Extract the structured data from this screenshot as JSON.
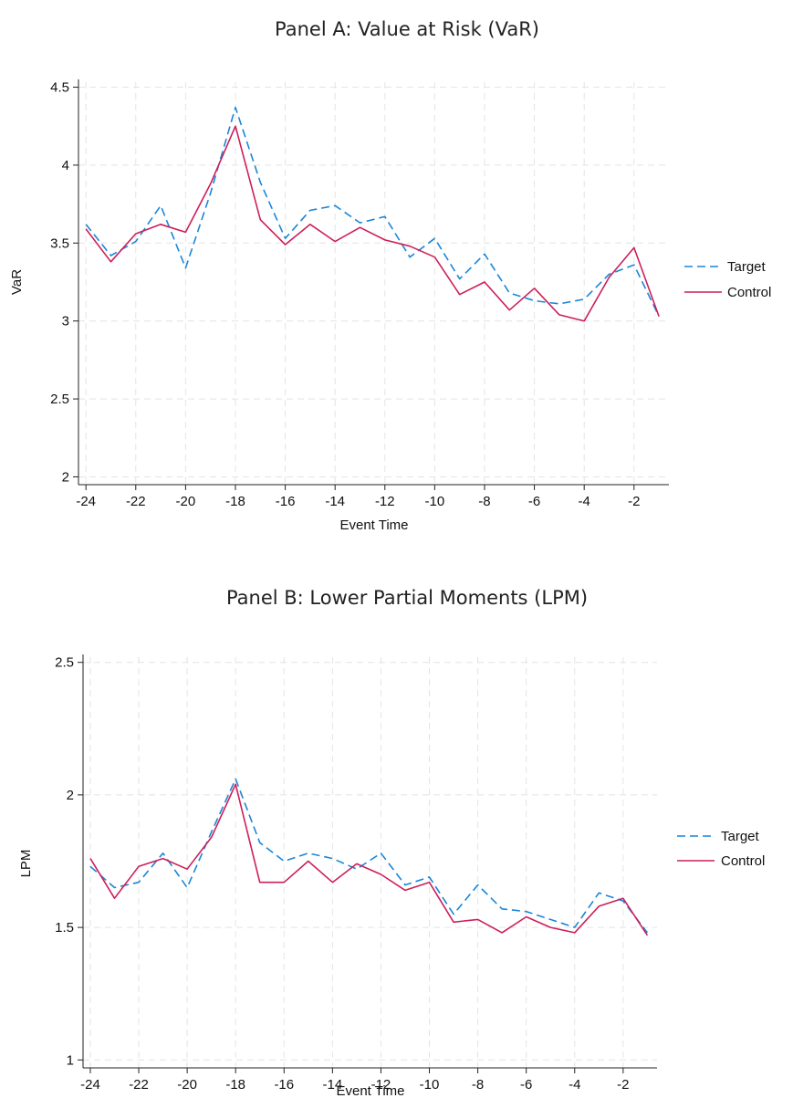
{
  "colors": {
    "target": "#1a86d9",
    "control": "#cc1f5a",
    "grid": "#e4e4e4",
    "axis": "#222222"
  },
  "chart_data": [
    {
      "type": "line",
      "title": "Panel A: Value at Risk (VaR)",
      "xlabel": "Event Time",
      "ylabel": "VaR",
      "xlim": [
        -24.3,
        -0.6
      ],
      "ylim": [
        1.95,
        4.55
      ],
      "xticks": [
        -24,
        -22,
        -20,
        -18,
        -16,
        -14,
        -12,
        -10,
        -8,
        -6,
        -4,
        -2
      ],
      "yticks": [
        2,
        2.5,
        3,
        3.5,
        4,
        4.5
      ],
      "ytick_labels": [
        "2",
        "2.5",
        "3",
        "3.5",
        "4",
        "4.5"
      ],
      "grid": true,
      "legend_position": "right",
      "x": [
        -24,
        -23,
        -22,
        -21,
        -20,
        -19,
        -18,
        -17,
        -16,
        -15,
        -14,
        -13,
        -12,
        -11,
        -10,
        -9,
        -8,
        -7,
        -6,
        -5,
        -4,
        -3,
        -2,
        -1
      ],
      "series": [
        {
          "name": "Target",
          "style": "dashed",
          "values": [
            3.62,
            3.42,
            3.51,
            3.74,
            3.34,
            3.82,
            4.37,
            3.89,
            3.53,
            3.71,
            3.74,
            3.63,
            3.67,
            3.41,
            3.53,
            3.27,
            3.43,
            3.18,
            3.13,
            3.11,
            3.14,
            3.3,
            3.36,
            3.03
          ]
        },
        {
          "name": "Control",
          "style": "solid",
          "values": [
            3.59,
            3.38,
            3.56,
            3.62,
            3.57,
            3.88,
            4.25,
            3.65,
            3.49,
            3.62,
            3.51,
            3.6,
            3.52,
            3.48,
            3.41,
            3.17,
            3.25,
            3.07,
            3.21,
            3.04,
            3.0,
            3.28,
            3.47,
            3.03
          ]
        }
      ]
    },
    {
      "type": "line",
      "title": "Panel B: Lower Partial Moments (LPM)",
      "xlabel": "Event Time",
      "ylabel": "LPM",
      "xlim": [
        -24.3,
        -0.6
      ],
      "ylim": [
        0.97,
        2.53
      ],
      "xticks": [
        -24,
        -22,
        -20,
        -18,
        -16,
        -14,
        -12,
        -10,
        -8,
        -6,
        -4,
        -2
      ],
      "yticks": [
        1,
        1.5,
        2,
        2.5
      ],
      "ytick_labels": [
        "1",
        "1.5",
        "2",
        "2.5"
      ],
      "grid": true,
      "legend_position": "right",
      "x": [
        -24,
        -23,
        -22,
        -21,
        -20,
        -19,
        -18,
        -17,
        -16,
        -15,
        -14,
        -13,
        -12,
        -11,
        -10,
        -9,
        -8,
        -7,
        -6,
        -5,
        -4,
        -3,
        -2,
        -1
      ],
      "series": [
        {
          "name": "Target",
          "style": "dashed",
          "values": [
            1.73,
            1.65,
            1.67,
            1.78,
            1.65,
            1.86,
            2.06,
            1.82,
            1.75,
            1.78,
            1.76,
            1.72,
            1.78,
            1.66,
            1.69,
            1.55,
            1.66,
            1.57,
            1.56,
            1.53,
            1.5,
            1.63,
            1.6,
            1.48
          ]
        },
        {
          "name": "Control",
          "style": "solid",
          "values": [
            1.76,
            1.61,
            1.73,
            1.76,
            1.72,
            1.84,
            2.04,
            1.67,
            1.67,
            1.75,
            1.67,
            1.74,
            1.7,
            1.64,
            1.67,
            1.52,
            1.53,
            1.48,
            1.54,
            1.5,
            1.48,
            1.58,
            1.61,
            1.47
          ]
        }
      ]
    }
  ]
}
